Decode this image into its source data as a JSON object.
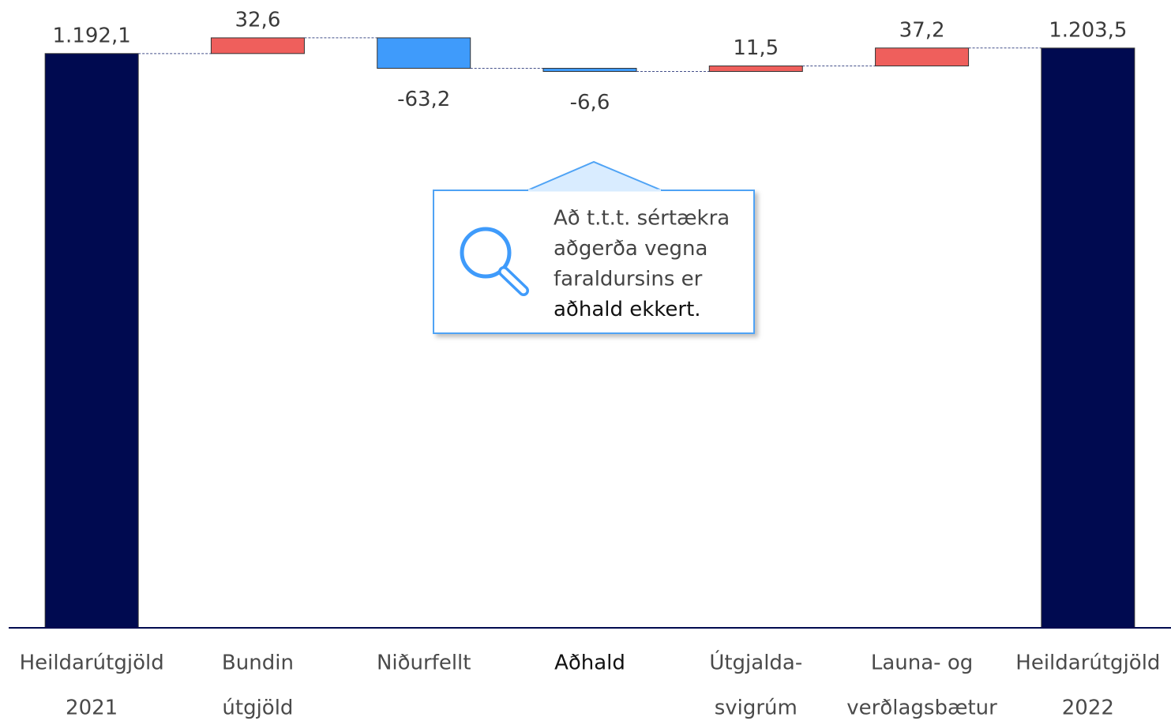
{
  "chart_data": {
    "type": "waterfall",
    "categories": [
      [
        "Heildarútgjöld",
        "2021"
      ],
      [
        "Bundin",
        "útgjöld"
      ],
      [
        "Niðurfellt"
      ],
      [
        "Aðhald"
      ],
      [
        "Útgjalda-",
        "svigrúm"
      ],
      [
        "Launa- og",
        "verðlagsbætur"
      ],
      [
        "Heildarútgjöld",
        "2022"
      ]
    ],
    "values": [
      1192.1,
      32.6,
      -63.2,
      -6.6,
      11.5,
      37.2,
      1203.5
    ],
    "value_labels": [
      "1.192,1",
      "32,6",
      "-63,2",
      "-6,6",
      "11,5",
      "37,2",
      "1.203,5"
    ],
    "is_total": [
      true,
      false,
      false,
      false,
      false,
      false,
      true
    ],
    "colors": {
      "total": "#000a50",
      "increase": "#ef5f5c",
      "decrease": "#3f9bfb"
    },
    "highlight_category": "Aðhald",
    "ylim": [
      0,
      1300
    ],
    "annotation": {
      "lines": [
        "Að t.t.t. sértækra",
        "aðgerða vegna",
        "faraldursins er",
        "aðhald ekkert."
      ],
      "highlight_line": 3
    }
  }
}
